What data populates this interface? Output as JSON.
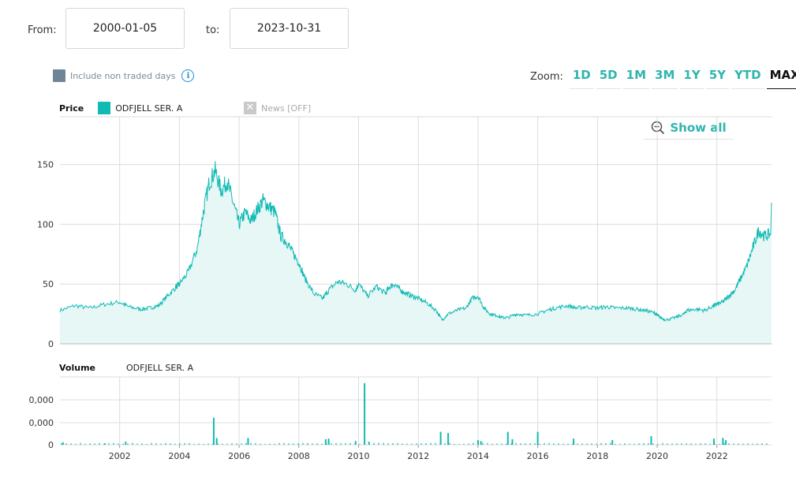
{
  "range": {
    "from_label": "From:",
    "from_value": "2000-01-05",
    "to_label": "to:",
    "to_value": "2023-10-31"
  },
  "options": {
    "include_non_traded_label": "Include non traded days",
    "info_icon": "i"
  },
  "zoom": {
    "label": "Zoom:",
    "buttons": [
      "1D",
      "5D",
      "1M",
      "3M",
      "1Y",
      "5Y",
      "YTD",
      "MAX"
    ],
    "active": "MAX"
  },
  "price_panel": {
    "label": "Price",
    "series_name": "ODFJELL SER. A",
    "news_label": "News [OFF]",
    "news_icon": "✕",
    "show_all_label": "Show all"
  },
  "volume_panel": {
    "label": "Volume",
    "series_name": "ODFJELL SER. A"
  },
  "colors": {
    "series": "#11bab3",
    "area_fill": "#e6f7f6",
    "grid": "#dcdcdc",
    "accent": "#2fb5ad"
  },
  "chart_data": [
    {
      "type": "area",
      "series": [
        {
          "name": "ODFJELL SER. A",
          "x": [
            2000.0,
            2000.5,
            2001.0,
            2001.5,
            2002.0,
            2002.3,
            2002.7,
            2003.0,
            2003.3,
            2003.6,
            2003.9,
            2004.0,
            2004.3,
            2004.6,
            2004.8,
            2005.0,
            2005.2,
            2005.4,
            2005.6,
            2005.8,
            2006.0,
            2006.2,
            2006.4,
            2006.6,
            2006.8,
            2007.0,
            2007.2,
            2007.4,
            2007.6,
            2007.8,
            2008.0,
            2008.2,
            2008.5,
            2008.8,
            2009.0,
            2009.3,
            2009.6,
            2009.9,
            2010.0,
            2010.3,
            2010.6,
            2010.9,
            2011.0,
            2011.2,
            2011.4,
            2011.6,
            2011.8,
            2012.0,
            2012.3,
            2012.6,
            2012.8,
            2013.0,
            2013.3,
            2013.6,
            2013.8,
            2014.0,
            2014.2,
            2014.4,
            2014.6,
            2014.8,
            2015.0,
            2015.3,
            2015.6,
            2016.0,
            2016.3,
            2016.6,
            2017.0,
            2017.3,
            2017.6,
            2018.0,
            2018.3,
            2018.6,
            2019.0,
            2019.3,
            2019.6,
            2019.9,
            2020.0,
            2020.1,
            2020.3,
            2020.6,
            2020.9,
            2021.0,
            2021.3,
            2021.6,
            2021.9,
            2022.0,
            2022.2,
            2022.4,
            2022.6,
            2022.8,
            2023.0,
            2023.2,
            2023.4,
            2023.6,
            2023.8
          ],
          "values": [
            28,
            32,
            30,
            33,
            35,
            31,
            29,
            30,
            32,
            40,
            48,
            50,
            60,
            80,
            110,
            135,
            145,
            128,
            136,
            118,
            100,
            110,
            103,
            112,
            120,
            115,
            110,
            90,
            85,
            76,
            68,
            55,
            42,
            38,
            45,
            52,
            50,
            45,
            50,
            40,
            48,
            42,
            47,
            50,
            45,
            42,
            40,
            38,
            34,
            28,
            20,
            25,
            28,
            30,
            38,
            40,
            30,
            25,
            24,
            22,
            22,
            25,
            24,
            25,
            28,
            30,
            32,
            30,
            31,
            30,
            31,
            30,
            30,
            29,
            28,
            26,
            24,
            22,
            20,
            22,
            25,
            28,
            29,
            28,
            32,
            33,
            35,
            40,
            45,
            55,
            65,
            80,
            95,
            90,
            92
          ]
        }
      ],
      "ylim": [
        0,
        190
      ],
      "yticks": [
        0,
        50,
        100,
        150
      ],
      "xlim": [
        2000.0,
        2023.83
      ],
      "xticks": [
        2002,
        2004,
        2006,
        2008,
        2010,
        2012,
        2014,
        2016,
        2018,
        2020,
        2022
      ],
      "grid": true
    },
    {
      "type": "bar",
      "series": [
        {
          "name": "ODFJELL SER. A",
          "x": [
            2000.1,
            2001.5,
            2002.2,
            2005.15,
            2005.25,
            2006.3,
            2008.9,
            2009.0,
            2009.9,
            2010.2,
            2010.35,
            2012.75,
            2013.0,
            2014.0,
            2014.1,
            2015.0,
            2015.15,
            2016.0,
            2017.2,
            2018.5,
            2019.8,
            2021.9,
            2022.2,
            2022.3
          ],
          "values": [
            0.08,
            0.05,
            0.1,
            0.88,
            0.22,
            0.22,
            0.18,
            0.2,
            0.12,
            2.0,
            0.1,
            0.42,
            0.38,
            0.15,
            0.12,
            0.42,
            0.18,
            0.42,
            0.2,
            0.15,
            0.28,
            0.2,
            0.22,
            0.15
          ]
        }
      ],
      "ylim": [
        0,
        2.2
      ],
      "ytick_labels": [
        "0",
        "0,000",
        "0,000"
      ],
      "xticks": [
        2002,
        2004,
        2006,
        2008,
        2010,
        2012,
        2014,
        2016,
        2018,
        2020,
        2022
      ],
      "grid": true
    }
  ]
}
